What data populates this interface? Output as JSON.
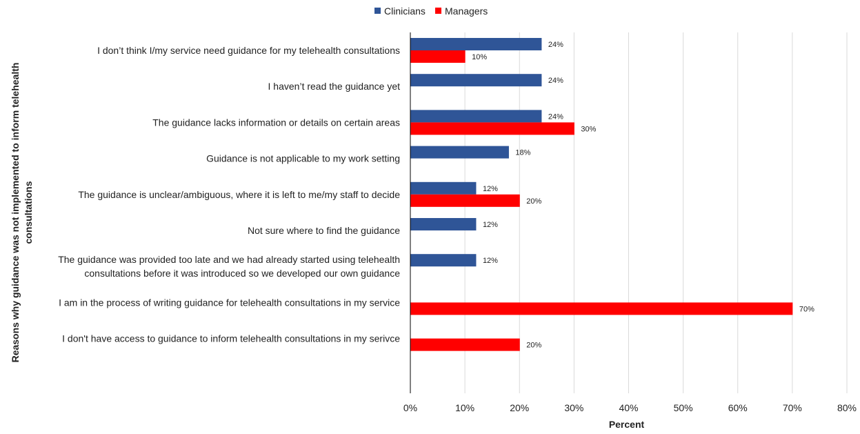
{
  "chart_data": {
    "type": "bar",
    "orientation": "horizontal",
    "categories": [
      [
        "I don’t think I/my service need guidance for my telehealth consultations"
      ],
      [
        "I haven’t read the guidance yet"
      ],
      [
        "The guidance lacks information or details on certain areas"
      ],
      [
        "Guidance is not applicable to my work setting"
      ],
      [
        "The guidance is unclear/ambiguous, where it is left to me/my staff to decide"
      ],
      [
        "Not sure where to find the guidance"
      ],
      [
        "The guidance was provided too late and we had already started using telehealth",
        "consultations before it was introduced so we developed our own guidance"
      ],
      [
        "I am in the process of writing guidance for telehealth consultations in my service"
      ],
      [
        "I don't have access to guidance to inform telehealth consultations in my serivce"
      ]
    ],
    "series": [
      {
        "name": "Clinicians",
        "color": "#2F5597",
        "values": [
          24,
          24,
          24,
          18,
          12,
          12,
          12,
          null,
          null
        ],
        "labels": [
          "24%",
          "24%",
          "24%",
          "18%",
          "12%",
          "12%",
          "12%",
          "",
          ""
        ]
      },
      {
        "name": "Managers",
        "color": "#FF0000",
        "values": [
          10,
          null,
          30,
          null,
          20,
          null,
          null,
          70,
          20
        ],
        "labels": [
          "10%",
          "",
          "30%",
          "",
          "20%",
          "",
          "",
          "70%",
          "20%"
        ]
      }
    ],
    "xlabel": "Percent",
    "ylabel": [
      "Reasons why guidance was not implemented to inform telehealth",
      "consultations"
    ],
    "xlim": [
      0,
      80
    ],
    "xticks": [
      "0%",
      "10%",
      "20%",
      "30%",
      "40%",
      "50%",
      "60%",
      "70%",
      "80%"
    ],
    "grid": "vertical",
    "legend_position": "top-center"
  }
}
